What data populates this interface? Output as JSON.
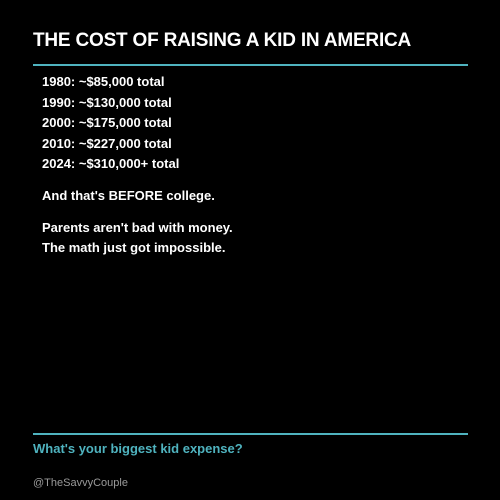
{
  "header": {
    "title": "THE COST OF RAISING A KID IN AMERICA"
  },
  "items": [
    "1980: ~$85,000 total",
    "1990: ~$130,000 total",
    "2000: ~$175,000 total",
    "2010: ~$227,000 total",
    "2024: ~$310,000+ total"
  ],
  "notes": [
    "And that's BEFORE college.",
    "Parents aren't bad with money.",
    "The math just got impossible."
  ],
  "footer": {
    "question": "What's your biggest kid expense?",
    "handle": "@TheSavvyCouple"
  }
}
